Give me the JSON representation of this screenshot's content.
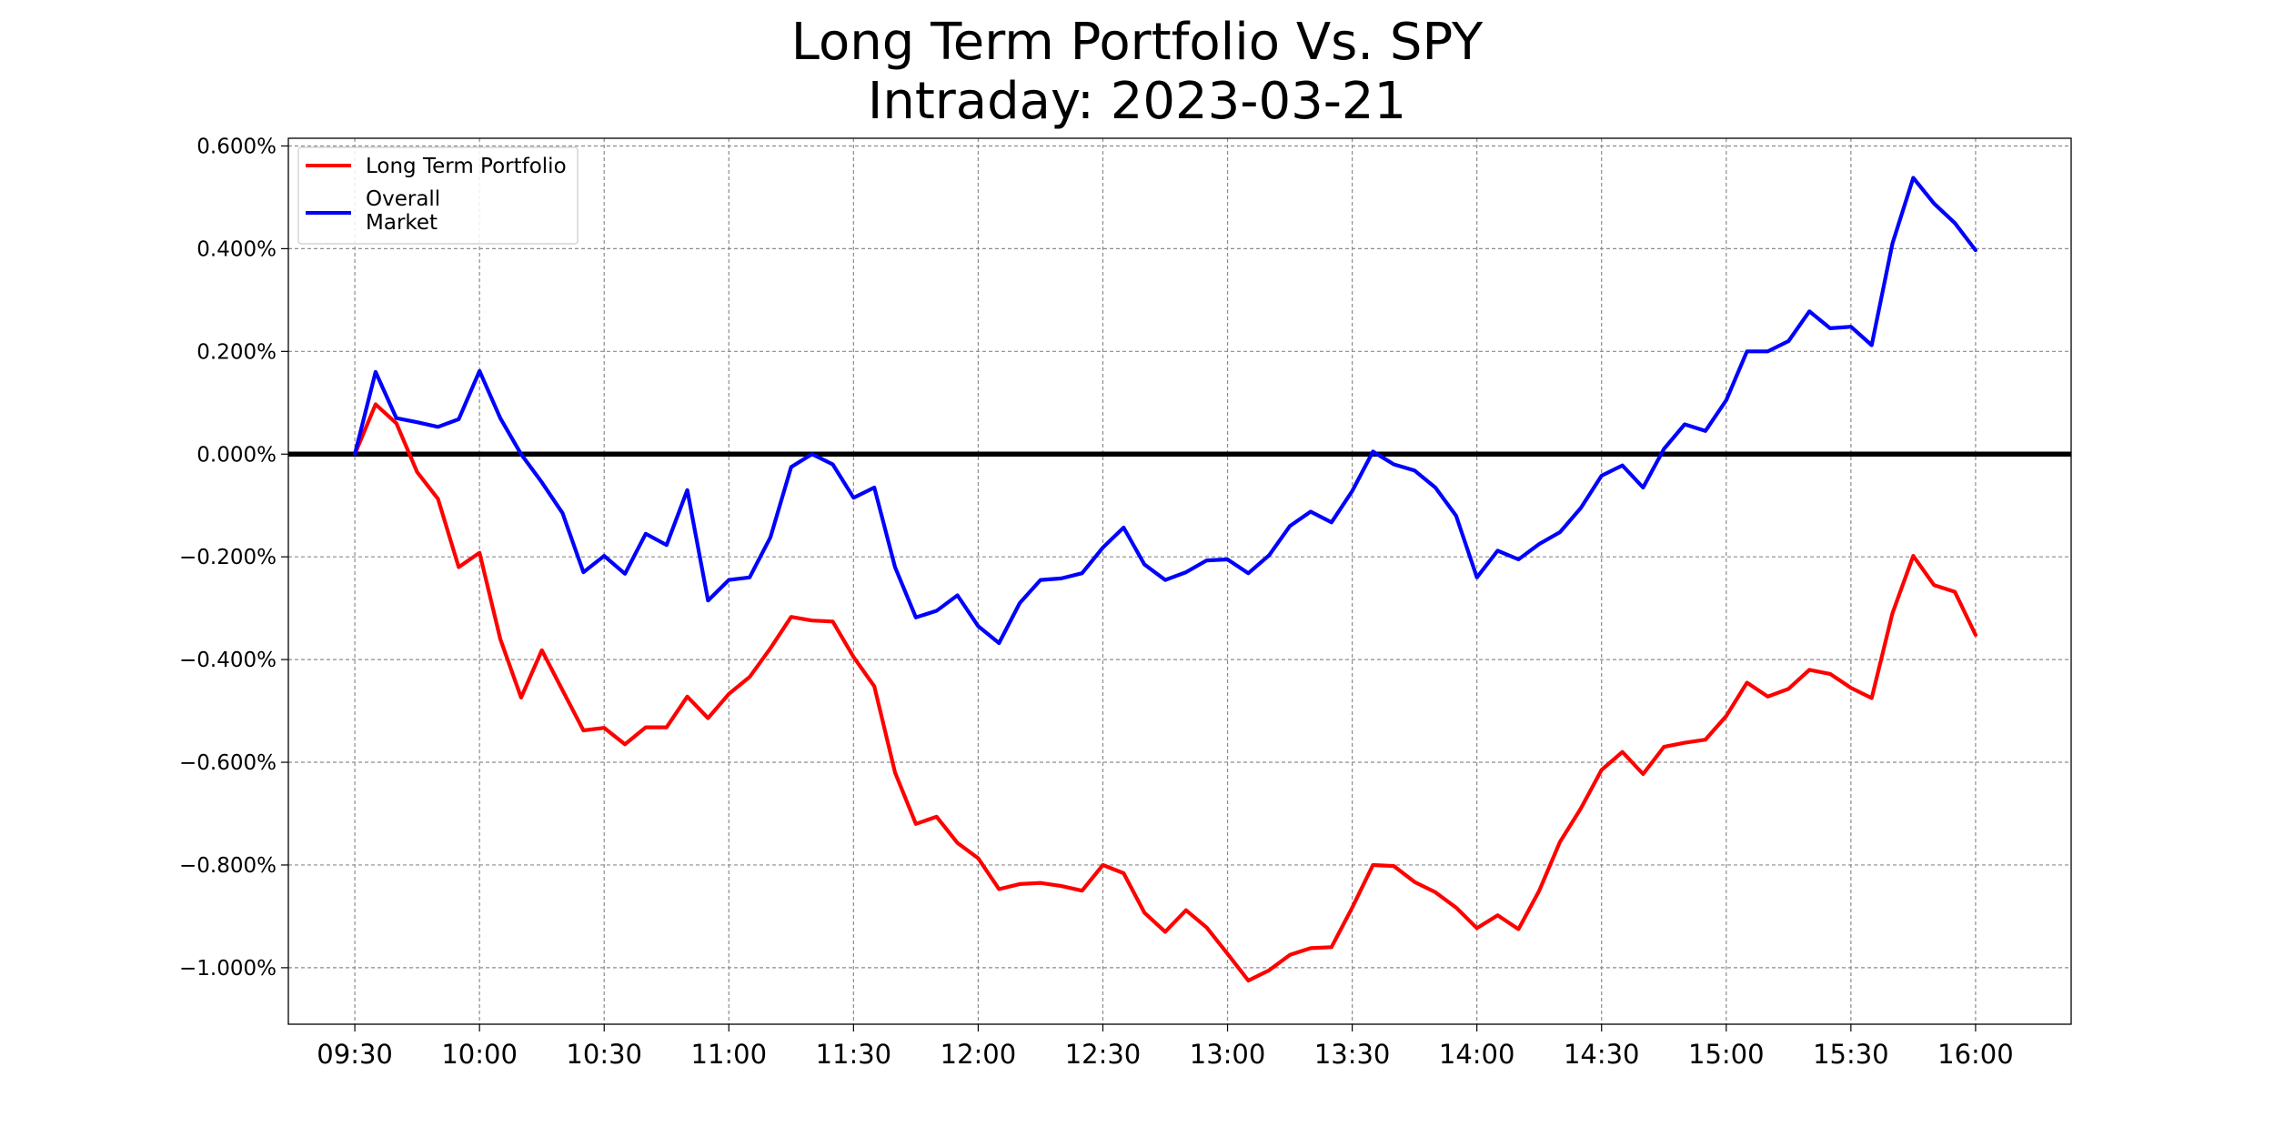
{
  "chart_data": {
    "type": "line",
    "title_lines": [
      "Long Term Portfolio Vs. SPY",
      "Intraday: 2023-03-21"
    ],
    "xlabel": "",
    "ylabel": "",
    "grid": true,
    "legend_position": "top-left",
    "x_range_minutes": [
      -16,
      413
    ],
    "ylim": [
      -1.11,
      0.615
    ],
    "x_ticks": [
      {
        "minute": 0,
        "label": "09:30"
      },
      {
        "minute": 30,
        "label": "10:00"
      },
      {
        "minute": 60,
        "label": "10:30"
      },
      {
        "minute": 90,
        "label": "11:00"
      },
      {
        "minute": 120,
        "label": "11:30"
      },
      {
        "minute": 150,
        "label": "12:00"
      },
      {
        "minute": 180,
        "label": "12:30"
      },
      {
        "minute": 210,
        "label": "13:00"
      },
      {
        "minute": 240,
        "label": "13:30"
      },
      {
        "minute": 270,
        "label": "14:00"
      },
      {
        "minute": 300,
        "label": "14:30"
      },
      {
        "minute": 330,
        "label": "15:00"
      },
      {
        "minute": 360,
        "label": "15:30"
      },
      {
        "minute": 390,
        "label": "16:00"
      }
    ],
    "y_ticks": [
      {
        "value": 0.6,
        "label": "0.600%"
      },
      {
        "value": 0.4,
        "label": "0.400%"
      },
      {
        "value": 0.2,
        "label": "0.200%"
      },
      {
        "value": 0.0,
        "label": "0.000%"
      },
      {
        "value": -0.2,
        "label": "−0.200%"
      },
      {
        "value": -0.4,
        "label": "−0.400%"
      },
      {
        "value": -0.6,
        "label": "−0.600%"
      },
      {
        "value": -0.8,
        "label": "−0.800%"
      },
      {
        "value": -1.0,
        "label": "−1.000%"
      }
    ],
    "reference_line": {
      "value": 0.0,
      "color": "#000000"
    },
    "x_step_minutes": 5,
    "series": [
      {
        "name": "Long Term Portfolio",
        "color": "#ff0000",
        "values": [
          0.0,
          0.097,
          0.06,
          -0.035,
          -0.087,
          -0.22,
          -0.192,
          -0.36,
          -0.474,
          -0.382,
          -0.46,
          -0.538,
          -0.533,
          -0.565,
          -0.532,
          -0.532,
          -0.472,
          -0.514,
          -0.467,
          -0.434,
          -0.378,
          -0.317,
          -0.324,
          -0.326,
          -0.395,
          -0.452,
          -0.62,
          -0.72,
          -0.706,
          -0.757,
          -0.787,
          -0.847,
          -0.837,
          -0.835,
          -0.841,
          -0.85,
          -0.8,
          -0.816,
          -0.893,
          -0.93,
          -0.888,
          -0.922,
          -0.973,
          -1.025,
          -1.005,
          -0.975,
          -0.962,
          -0.96,
          -0.883,
          -0.8,
          -0.802,
          -0.833,
          -0.853,
          -0.883,
          -0.923,
          -0.898,
          -0.925,
          -0.85,
          -0.755,
          -0.69,
          -0.615,
          -0.58,
          -0.623,
          -0.57,
          -0.562,
          -0.556,
          -0.51,
          -0.445,
          -0.472,
          -0.457,
          -0.42,
          -0.428,
          -0.455,
          -0.475,
          -0.31,
          -0.198,
          -0.255,
          -0.268,
          -0.352
        ]
      },
      {
        "name": "Overall\nMarket",
        "color": "#0000ff",
        "values": [
          0.0,
          0.16,
          0.07,
          0.062,
          0.053,
          0.068,
          0.162,
          0.07,
          0.0,
          -0.055,
          -0.115,
          -0.23,
          -0.198,
          -0.233,
          -0.155,
          -0.177,
          -0.07,
          -0.285,
          -0.245,
          -0.24,
          -0.162,
          -0.025,
          0.0,
          -0.02,
          -0.085,
          -0.065,
          -0.22,
          -0.318,
          -0.305,
          -0.275,
          -0.335,
          -0.368,
          -0.29,
          -0.245,
          -0.242,
          -0.232,
          -0.182,
          -0.143,
          -0.215,
          -0.245,
          -0.23,
          -0.207,
          -0.205,
          -0.232,
          -0.197,
          -0.14,
          -0.112,
          -0.133,
          -0.072,
          0.005,
          -0.02,
          -0.032,
          -0.065,
          -0.12,
          -0.24,
          -0.188,
          -0.205,
          -0.175,
          -0.152,
          -0.105,
          -0.042,
          -0.022,
          -0.065,
          0.01,
          0.058,
          0.045,
          0.105,
          0.2,
          0.2,
          0.22,
          0.278,
          0.245,
          0.248,
          0.212,
          0.41,
          0.538,
          0.488,
          0.45,
          0.397
        ]
      }
    ]
  }
}
